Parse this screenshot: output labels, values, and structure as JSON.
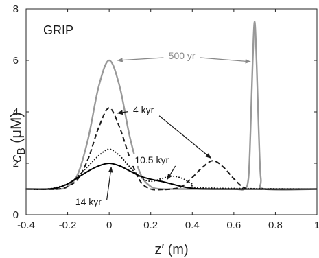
{
  "chart_data": {
    "type": "line",
    "panel_label": "GRIP",
    "xlabel": "z′ (m)",
    "ylabel_main": "c",
    "ylabel_sub": "B",
    "ylabel_unit": " (μM)",
    "xlim": [
      -0.4,
      1.0
    ],
    "ylim": [
      0,
      8
    ],
    "xticks": [
      "-0.4",
      "-0.2",
      "0",
      "0.2",
      "0.4",
      "0.6",
      "0.8",
      "1"
    ],
    "yticks": [
      "0",
      "2",
      "4",
      "6",
      "8"
    ],
    "grid": false,
    "series": [
      {
        "name": "500 yr",
        "color": "#999999",
        "style": "solid",
        "x": [
          -0.4,
          -0.25,
          -0.2,
          -0.15,
          -0.1,
          -0.05,
          0.0,
          0.05,
          0.1,
          0.15,
          0.2,
          0.25,
          0.3,
          0.4,
          0.6,
          0.65,
          0.67,
          0.68,
          0.69,
          0.7,
          0.71,
          0.72,
          0.73,
          0.75,
          1.0
        ],
        "y": [
          1.0,
          1.0,
          1.1,
          1.6,
          3.0,
          5.0,
          6.0,
          5.0,
          3.0,
          1.6,
          1.1,
          1.0,
          1.0,
          1.0,
          1.0,
          1.0,
          1.4,
          3.2,
          5.8,
          7.5,
          5.8,
          3.2,
          1.4,
          1.0,
          1.0
        ]
      },
      {
        "name": "4 kyr",
        "color": "#1a1a1a",
        "style": "dashed",
        "x": [
          -0.4,
          -0.25,
          -0.2,
          -0.15,
          -0.1,
          -0.05,
          0.0,
          0.05,
          0.1,
          0.15,
          0.2,
          0.25,
          0.3,
          0.35,
          0.4,
          0.45,
          0.5,
          0.55,
          0.6,
          0.65,
          0.7,
          1.0
        ],
        "y": [
          1.0,
          1.0,
          1.1,
          1.4,
          2.2,
          3.4,
          4.15,
          3.4,
          2.2,
          1.3,
          1.0,
          0.98,
          1.0,
          1.1,
          1.45,
          1.85,
          2.1,
          1.85,
          1.4,
          1.05,
          1.0,
          1.0
        ]
      },
      {
        "name": "10.5 kyr",
        "color": "#1a1a1a",
        "style": "dotted",
        "x": [
          -0.4,
          -0.3,
          -0.2,
          -0.15,
          -0.1,
          -0.05,
          0.0,
          0.05,
          0.1,
          0.15,
          0.2,
          0.25,
          0.3,
          0.35,
          0.4,
          0.45,
          1.0
        ],
        "y": [
          1.0,
          1.0,
          1.2,
          1.5,
          1.9,
          2.3,
          2.55,
          2.3,
          1.85,
          1.45,
          1.3,
          1.4,
          1.5,
          1.42,
          1.2,
          1.05,
          1.0
        ]
      },
      {
        "name": "14 kyr",
        "color": "#000000",
        "style": "solid",
        "x": [
          -0.4,
          -0.3,
          -0.25,
          -0.2,
          -0.15,
          -0.1,
          -0.05,
          0.0,
          0.05,
          0.1,
          0.15,
          0.2,
          0.25,
          0.3,
          0.35,
          0.4,
          0.5,
          1.0
        ],
        "y": [
          1.0,
          1.0,
          1.05,
          1.2,
          1.45,
          1.7,
          1.9,
          2.0,
          1.9,
          1.7,
          1.5,
          1.38,
          1.3,
          1.2,
          1.1,
          1.03,
          1.0,
          1.0
        ]
      }
    ],
    "annotations": [
      {
        "text": "500 yr",
        "color": "#888888",
        "x": 0.35,
        "y": 6.0,
        "arrows_to": [
          [
            0.04,
            6.0
          ],
          [
            0.68,
            5.95
          ]
        ]
      },
      {
        "text": "4 kyr",
        "color": "#1a1a1a",
        "x": 0.165,
        "y": 3.9,
        "arrows_to": [
          [
            0.04,
            3.95
          ],
          [
            0.49,
            2.2
          ]
        ]
      },
      {
        "text": "10.5 kyr",
        "color": "#1a1a1a",
        "x": 0.205,
        "y": 1.95,
        "arrows_to": [
          [
            0.28,
            1.38
          ]
        ]
      },
      {
        "text": "14 kyr",
        "color": "#1a1a1a",
        "x": -0.1,
        "y": 0.32,
        "arrows_to": [
          [
            0.01,
            1.85
          ]
        ]
      }
    ]
  }
}
